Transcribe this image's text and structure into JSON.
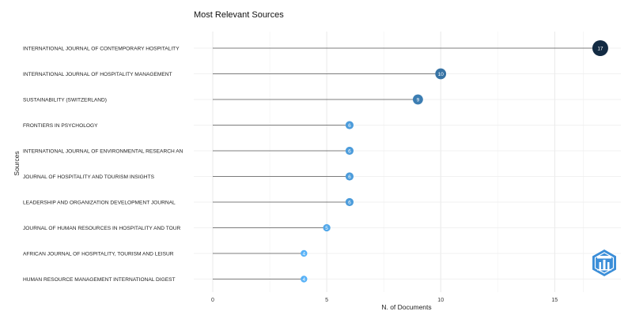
{
  "chart_data": {
    "type": "lollipop",
    "title": "Most Relevant Sources",
    "xlabel": "N. of Documents",
    "ylabel": "Sources",
    "xlim": [
      0,
      17.5
    ],
    "xticks": [
      0,
      5,
      10,
      15
    ],
    "grid": true,
    "categories": [
      "INTERNATIONAL JOURNAL OF CONTEMPORARY HOSPITALITY",
      "INTERNATIONAL JOURNAL OF HOSPITALITY MANAGEMENT",
      "SUSTAINABILITY (SWITZERLAND)",
      "FRONTIERS IN PSYCHOLOGY",
      "INTERNATIONAL JOURNAL OF ENVIRONMENTAL RESEARCH AN",
      "JOURNAL OF HOSPITALITY AND TOURISM INSIGHTS",
      "LEADERSHIP AND ORGANIZATION DEVELOPMENT JOURNAL",
      "JOURNAL OF HUMAN RESOURCES IN HOSPITALITY AND TOUR",
      "AFRICAN JOURNAL OF HOSPITALITY, TOURISM AND LEISUR",
      "HUMAN RESOURCE MANAGEMENT INTERNATIONAL DIGEST"
    ],
    "values": [
      17,
      10,
      9,
      6,
      6,
      6,
      6,
      5,
      4,
      4
    ],
    "color_scale": {
      "low": "#56B1F7",
      "high": "#132B43"
    }
  }
}
